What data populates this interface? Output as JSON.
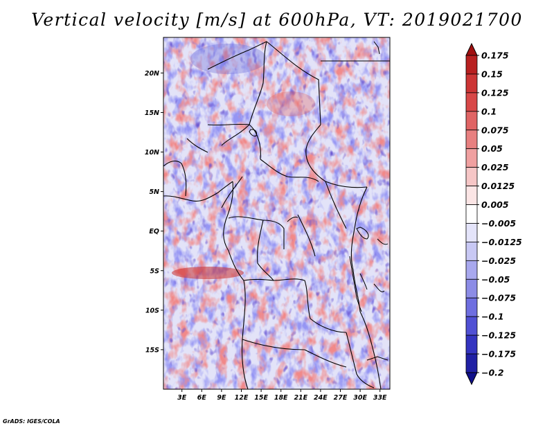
{
  "chart_data": {
    "type": "heatmap",
    "title": "Vertical velocity [m/s] at 600hPa, VT: 2019021700",
    "variable": "Vertical velocity",
    "units": "m/s",
    "level": "600hPa",
    "valid_time": "2019021700",
    "x_axis": {
      "labels": [
        "3E",
        "6E",
        "9E",
        "12E",
        "15E",
        "18E",
        "21E",
        "24E",
        "27E",
        "30E",
        "33E"
      ],
      "values": [
        3,
        6,
        9,
        12,
        15,
        18,
        21,
        24,
        27,
        30,
        33
      ],
      "range": [
        0.2,
        34.5
      ]
    },
    "y_axis": {
      "labels": [
        "20N",
        "15N",
        "10N",
        "5N",
        "EQ",
        "5S",
        "10S",
        "15S"
      ],
      "values": [
        20,
        15,
        10,
        5,
        0,
        -5,
        -10,
        -15
      ],
      "range": [
        -20,
        24.5
      ]
    },
    "colorbar": {
      "levels": [
        0.175,
        0.15,
        0.125,
        0.1,
        0.075,
        0.05,
        0.025,
        0.0125,
        0.005,
        -0.005,
        -0.0125,
        -0.025,
        -0.05,
        -0.075,
        -0.1,
        -0.125,
        -0.175,
        -0.2
      ],
      "labels": [
        "0.175",
        "0.15",
        "0.125",
        "0.1",
        "0.075",
        "0.05",
        "0.025",
        "0.0125",
        "0.005",
        "−0.005",
        "−0.0125",
        "−0.025",
        "−0.05",
        "−0.075",
        "−0.1",
        "−0.125",
        "−0.175",
        "−0.2"
      ],
      "colors": [
        "#a01010",
        "#b82020",
        "#cc3535",
        "#d84848",
        "#e06464",
        "#e88080",
        "#f0a0a0",
        "#f6c6c6",
        "#fbe5e5",
        "#ffffff",
        "#e4e4fa",
        "#c8c8f4",
        "#a8a8ee",
        "#8c8ce6",
        "#6e6ee0",
        "#5050d4",
        "#3434c0",
        "#2020a4",
        "#10108a"
      ]
    }
  },
  "credit": "GrADS: IGES/COLA"
}
